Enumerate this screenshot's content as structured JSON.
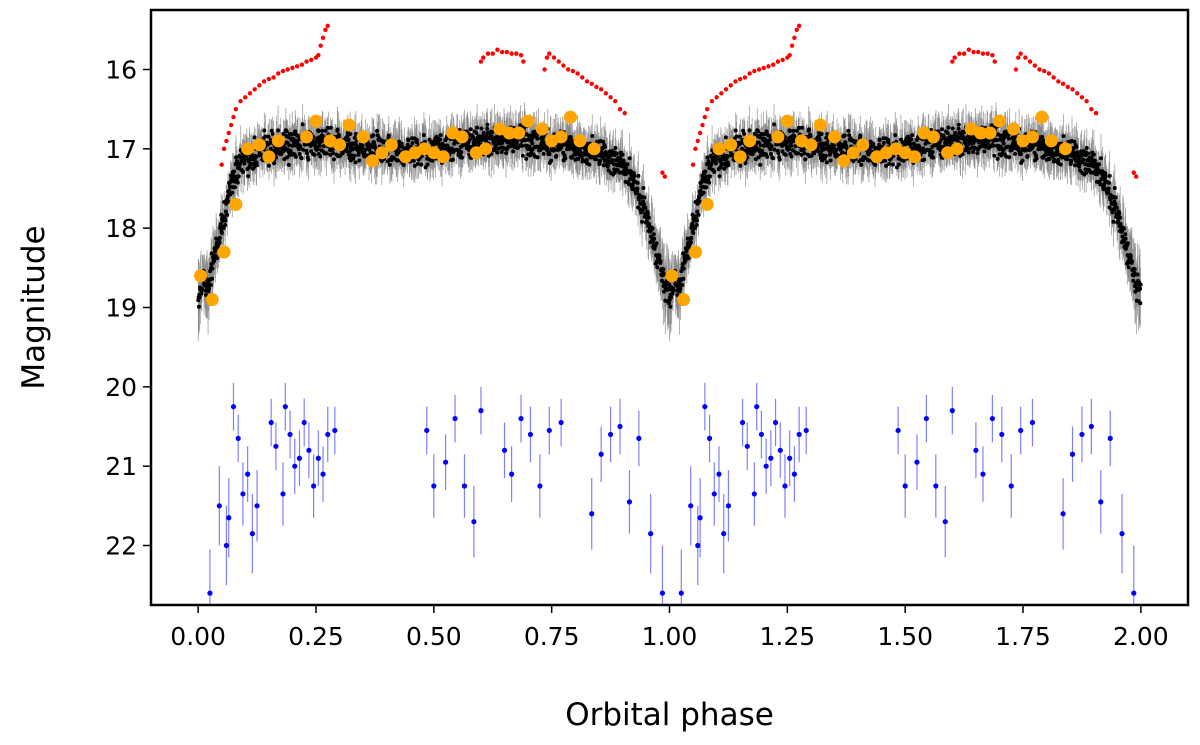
{
  "chart_data": {
    "type": "scatter",
    "title": "",
    "xlabel": "Orbital phase",
    "ylabel": "Magnitude",
    "xlim": [
      -0.1,
      2.1
    ],
    "ylim": [
      22.75,
      15.25
    ],
    "y_inverted": true,
    "x_ticks": [
      "0.00",
      "0.25",
      "0.50",
      "0.75",
      "1.00",
      "1.25",
      "1.50",
      "1.75",
      "2.00"
    ],
    "x_tick_values": [
      0,
      0.25,
      0.5,
      0.75,
      1.0,
      1.25,
      1.5,
      1.75,
      2.0
    ],
    "y_ticks": [
      "16",
      "17",
      "18",
      "19",
      "20",
      "21",
      "22"
    ],
    "y_tick_values": [
      16,
      17,
      18,
      19,
      20,
      21,
      22
    ],
    "grid": false,
    "legend": "none",
    "series": [
      {
        "color": "#000000",
        "errorbar_color": "#808080",
        "marker_size": "small",
        "description_points": "dense light curve, phase 0-1 repeated at 1-2",
        "points": [
          {
            "x": 0.0,
            "y": 18.9,
            "err": 0.5
          },
          {
            "x": 0.01,
            "y": 18.6,
            "err": 0.4
          },
          {
            "x": 0.02,
            "y": 18.8,
            "err": 0.4
          },
          {
            "x": 0.03,
            "y": 18.5,
            "err": 0.4
          },
          {
            "x": 0.04,
            "y": 18.2,
            "err": 0.3
          },
          {
            "x": 0.05,
            "y": 18.0,
            "err": 0.3
          },
          {
            "x": 0.06,
            "y": 17.7,
            "err": 0.3
          },
          {
            "x": 0.07,
            "y": 17.5,
            "err": 0.3
          },
          {
            "x": 0.08,
            "y": 17.3,
            "err": 0.3
          },
          {
            "x": 0.09,
            "y": 17.2,
            "err": 0.3
          },
          {
            "x": 0.1,
            "y": 17.1,
            "err": 0.3
          },
          {
            "x": 0.15,
            "y": 17.0,
            "err": 0.3
          },
          {
            "x": 0.2,
            "y": 16.95,
            "err": 0.3
          },
          {
            "x": 0.25,
            "y": 16.9,
            "err": 0.3
          },
          {
            "x": 0.3,
            "y": 16.95,
            "err": 0.3
          },
          {
            "x": 0.35,
            "y": 17.0,
            "err": 0.3
          },
          {
            "x": 0.4,
            "y": 17.0,
            "err": 0.3
          },
          {
            "x": 0.45,
            "y": 17.0,
            "err": 0.3
          },
          {
            "x": 0.5,
            "y": 17.0,
            "err": 0.3
          },
          {
            "x": 0.55,
            "y": 16.95,
            "err": 0.3
          },
          {
            "x": 0.6,
            "y": 16.9,
            "err": 0.3
          },
          {
            "x": 0.65,
            "y": 16.9,
            "err": 0.3
          },
          {
            "x": 0.7,
            "y": 16.9,
            "err": 0.3
          },
          {
            "x": 0.75,
            "y": 16.95,
            "err": 0.3
          },
          {
            "x": 0.8,
            "y": 17.0,
            "err": 0.3
          },
          {
            "x": 0.85,
            "y": 17.05,
            "err": 0.3
          },
          {
            "x": 0.9,
            "y": 17.2,
            "err": 0.3
          },
          {
            "x": 0.93,
            "y": 17.5,
            "err": 0.3
          },
          {
            "x": 0.96,
            "y": 18.0,
            "err": 0.4
          },
          {
            "x": 0.98,
            "y": 18.5,
            "err": 0.4
          },
          {
            "x": 0.99,
            "y": 18.8,
            "err": 0.5
          }
        ]
      },
      {
        "color": "#ff0000",
        "marker_size": "small",
        "points": [
          {
            "x": 0.05,
            "y": 17.2
          },
          {
            "x": 0.055,
            "y": 17.0
          },
          {
            "x": 0.06,
            "y": 16.9
          },
          {
            "x": 0.065,
            "y": 16.8
          },
          {
            "x": 0.07,
            "y": 16.7
          },
          {
            "x": 0.075,
            "y": 16.6
          },
          {
            "x": 0.08,
            "y": 16.5
          },
          {
            "x": 0.09,
            "y": 16.4
          },
          {
            "x": 0.1,
            "y": 16.35
          },
          {
            "x": 0.11,
            "y": 16.3
          },
          {
            "x": 0.12,
            "y": 16.25
          },
          {
            "x": 0.13,
            "y": 16.2
          },
          {
            "x": 0.14,
            "y": 16.15
          },
          {
            "x": 0.15,
            "y": 16.12
          },
          {
            "x": 0.16,
            "y": 16.1
          },
          {
            "x": 0.17,
            "y": 16.05
          },
          {
            "x": 0.18,
            "y": 16.02
          },
          {
            "x": 0.19,
            "y": 16.0
          },
          {
            "x": 0.2,
            "y": 15.98
          },
          {
            "x": 0.21,
            "y": 15.96
          },
          {
            "x": 0.22,
            "y": 15.94
          },
          {
            "x": 0.23,
            "y": 15.9
          },
          {
            "x": 0.24,
            "y": 15.88
          },
          {
            "x": 0.25,
            "y": 15.85
          },
          {
            "x": 0.255,
            "y": 15.82
          },
          {
            "x": 0.26,
            "y": 15.7
          },
          {
            "x": 0.265,
            "y": 15.6
          },
          {
            "x": 0.27,
            "y": 15.5
          },
          {
            "x": 0.275,
            "y": 15.45
          },
          {
            "x": 0.6,
            "y": 15.9
          },
          {
            "x": 0.605,
            "y": 15.85
          },
          {
            "x": 0.615,
            "y": 15.8
          },
          {
            "x": 0.625,
            "y": 15.8
          },
          {
            "x": 0.635,
            "y": 15.75
          },
          {
            "x": 0.645,
            "y": 15.78
          },
          {
            "x": 0.655,
            "y": 15.78
          },
          {
            "x": 0.665,
            "y": 15.8
          },
          {
            "x": 0.675,
            "y": 15.8
          },
          {
            "x": 0.685,
            "y": 15.82
          },
          {
            "x": 0.69,
            "y": 15.9
          },
          {
            "x": 0.735,
            "y": 16.0
          },
          {
            "x": 0.74,
            "y": 15.85
          },
          {
            "x": 0.745,
            "y": 15.8
          },
          {
            "x": 0.755,
            "y": 15.85
          },
          {
            "x": 0.765,
            "y": 15.9
          },
          {
            "x": 0.775,
            "y": 15.95
          },
          {
            "x": 0.785,
            "y": 16.0
          },
          {
            "x": 0.795,
            "y": 16.02
          },
          {
            "x": 0.805,
            "y": 16.05
          },
          {
            "x": 0.815,
            "y": 16.1
          },
          {
            "x": 0.825,
            "y": 16.15
          },
          {
            "x": 0.835,
            "y": 16.18
          },
          {
            "x": 0.845,
            "y": 16.22
          },
          {
            "x": 0.855,
            "y": 16.25
          },
          {
            "x": 0.865,
            "y": 16.3
          },
          {
            "x": 0.875,
            "y": 16.35
          },
          {
            "x": 0.885,
            "y": 16.4
          },
          {
            "x": 0.895,
            "y": 16.5
          },
          {
            "x": 0.905,
            "y": 16.55
          },
          {
            "x": 0.985,
            "y": 17.3
          },
          {
            "x": 0.99,
            "y": 17.35
          }
        ]
      },
      {
        "color": "#ffa500",
        "marker_size": "large",
        "points": [
          {
            "x": 0.005,
            "y": 18.6
          },
          {
            "x": 0.03,
            "y": 18.9
          },
          {
            "x": 0.055,
            "y": 18.3
          },
          {
            "x": 0.08,
            "y": 17.7
          },
          {
            "x": 0.105,
            "y": 17.0
          },
          {
            "x": 0.13,
            "y": 16.95
          },
          {
            "x": 0.15,
            "y": 17.1
          },
          {
            "x": 0.17,
            "y": 16.9
          },
          {
            "x": 0.23,
            "y": 16.85
          },
          {
            "x": 0.25,
            "y": 16.65
          },
          {
            "x": 0.28,
            "y": 16.9
          },
          {
            "x": 0.3,
            "y": 16.95
          },
          {
            "x": 0.32,
            "y": 16.7
          },
          {
            "x": 0.35,
            "y": 16.85
          },
          {
            "x": 0.37,
            "y": 17.15
          },
          {
            "x": 0.39,
            "y": 17.05
          },
          {
            "x": 0.41,
            "y": 16.95
          },
          {
            "x": 0.44,
            "y": 17.1
          },
          {
            "x": 0.46,
            "y": 17.05
          },
          {
            "x": 0.48,
            "y": 17.0
          },
          {
            "x": 0.5,
            "y": 17.05
          },
          {
            "x": 0.52,
            "y": 17.1
          },
          {
            "x": 0.54,
            "y": 16.8
          },
          {
            "x": 0.56,
            "y": 16.85
          },
          {
            "x": 0.59,
            "y": 17.05
          },
          {
            "x": 0.61,
            "y": 17.0
          },
          {
            "x": 0.64,
            "y": 16.75
          },
          {
            "x": 0.66,
            "y": 16.8
          },
          {
            "x": 0.68,
            "y": 16.8
          },
          {
            "x": 0.7,
            "y": 16.65
          },
          {
            "x": 0.73,
            "y": 16.75
          },
          {
            "x": 0.75,
            "y": 16.9
          },
          {
            "x": 0.77,
            "y": 16.85
          },
          {
            "x": 0.79,
            "y": 16.6
          },
          {
            "x": 0.81,
            "y": 16.9
          },
          {
            "x": 0.84,
            "y": 17.0
          }
        ]
      },
      {
        "color": "#0000ff",
        "errorbar_color": "#8080ff",
        "marker_size": "small",
        "points": [
          {
            "x": 0.025,
            "y": 22.6,
            "err": 0.55
          },
          {
            "x": 0.045,
            "y": 21.5,
            "err": 0.5
          },
          {
            "x": 0.06,
            "y": 22.0,
            "err": 0.5
          },
          {
            "x": 0.065,
            "y": 21.65,
            "err": 0.5
          },
          {
            "x": 0.075,
            "y": 20.25,
            "err": 0.3
          },
          {
            "x": 0.085,
            "y": 20.65,
            "err": 0.3
          },
          {
            "x": 0.095,
            "y": 21.35,
            "err": 0.4
          },
          {
            "x": 0.105,
            "y": 21.1,
            "err": 0.35
          },
          {
            "x": 0.115,
            "y": 21.85,
            "err": 0.5
          },
          {
            "x": 0.125,
            "y": 21.5,
            "err": 0.45
          },
          {
            "x": 0.155,
            "y": 20.45,
            "err": 0.3
          },
          {
            "x": 0.165,
            "y": 20.75,
            "err": 0.3
          },
          {
            "x": 0.18,
            "y": 21.35,
            "err": 0.4
          },
          {
            "x": 0.185,
            "y": 20.25,
            "err": 0.3
          },
          {
            "x": 0.195,
            "y": 20.6,
            "err": 0.3
          },
          {
            "x": 0.205,
            "y": 21.0,
            "err": 0.35
          },
          {
            "x": 0.215,
            "y": 20.9,
            "err": 0.35
          },
          {
            "x": 0.225,
            "y": 20.45,
            "err": 0.3
          },
          {
            "x": 0.235,
            "y": 20.8,
            "err": 0.35
          },
          {
            "x": 0.245,
            "y": 21.25,
            "err": 0.4
          },
          {
            "x": 0.255,
            "y": 20.9,
            "err": 0.35
          },
          {
            "x": 0.265,
            "y": 21.1,
            "err": 0.35
          },
          {
            "x": 0.275,
            "y": 20.6,
            "err": 0.35
          },
          {
            "x": 0.29,
            "y": 20.55,
            "err": 0.3
          },
          {
            "x": 0.485,
            "y": 20.55,
            "err": 0.3
          },
          {
            "x": 0.5,
            "y": 21.25,
            "err": 0.4
          },
          {
            "x": 0.525,
            "y": 20.95,
            "err": 0.35
          },
          {
            "x": 0.545,
            "y": 20.4,
            "err": 0.3
          },
          {
            "x": 0.565,
            "y": 21.25,
            "err": 0.4
          },
          {
            "x": 0.585,
            "y": 21.7,
            "err": 0.45
          },
          {
            "x": 0.6,
            "y": 20.3,
            "err": 0.3
          },
          {
            "x": 0.65,
            "y": 20.8,
            "err": 0.35
          },
          {
            "x": 0.665,
            "y": 21.1,
            "err": 0.35
          },
          {
            "x": 0.685,
            "y": 20.4,
            "err": 0.3
          },
          {
            "x": 0.705,
            "y": 20.6,
            "err": 0.35
          },
          {
            "x": 0.725,
            "y": 21.25,
            "err": 0.4
          },
          {
            "x": 0.745,
            "y": 20.55,
            "err": 0.3
          },
          {
            "x": 0.77,
            "y": 20.45,
            "err": 0.3
          },
          {
            "x": 0.835,
            "y": 21.6,
            "err": 0.45
          },
          {
            "x": 0.855,
            "y": 20.85,
            "err": 0.35
          },
          {
            "x": 0.875,
            "y": 20.6,
            "err": 0.35
          },
          {
            "x": 0.895,
            "y": 20.5,
            "err": 0.35
          },
          {
            "x": 0.915,
            "y": 21.45,
            "err": 0.4
          },
          {
            "x": 0.935,
            "y": 20.65,
            "err": 0.35
          },
          {
            "x": 0.96,
            "y": 21.85,
            "err": 0.5
          },
          {
            "x": 0.985,
            "y": 22.6,
            "err": 0.6
          }
        ]
      }
    ]
  }
}
